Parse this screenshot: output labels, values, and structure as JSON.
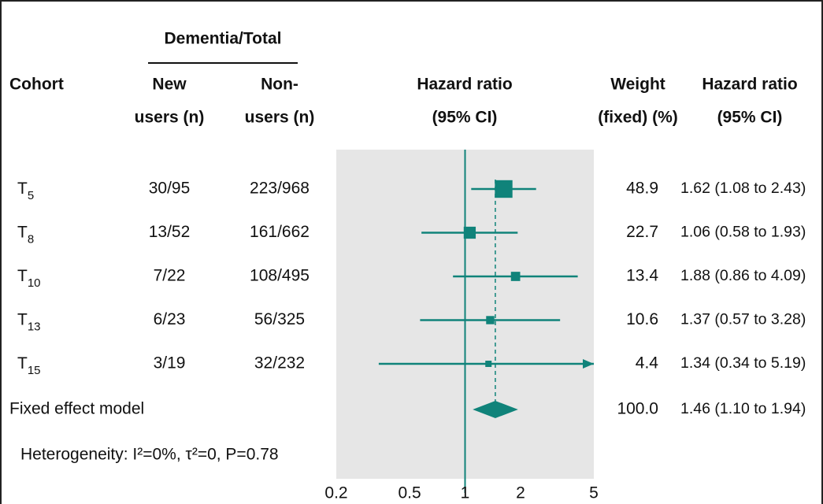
{
  "chart_data": {
    "type": "forest",
    "headers": {
      "group": "Dementia/Total",
      "cohort": "Cohort",
      "new_users": [
        "New",
        "users (n)"
      ],
      "non_users": [
        "Non-",
        "users (n)"
      ],
      "plot": [
        "Hazard ratio",
        "(95% CI)"
      ],
      "weight": [
        "Weight",
        "(fixed) (%)"
      ],
      "ci": [
        "Hazard ratio",
        "(95% CI)"
      ]
    },
    "cohorts": [
      {
        "base": "T",
        "sub": "5"
      },
      {
        "base": "T",
        "sub": "8"
      },
      {
        "base": "T",
        "sub": "10"
      },
      {
        "base": "T",
        "sub": "13"
      },
      {
        "base": "T",
        "sub": "15"
      }
    ],
    "new_users": [
      "30/95",
      "13/52",
      "7/22",
      "6/23",
      "3/19"
    ],
    "non_users": [
      "223/968",
      "161/662",
      "108/495",
      "56/325",
      "32/232"
    ],
    "hr": [
      1.62,
      1.06,
      1.88,
      1.37,
      1.34
    ],
    "lower": [
      1.08,
      0.58,
      0.86,
      0.57,
      0.34
    ],
    "upper": [
      2.43,
      1.93,
      4.09,
      3.28,
      5.19
    ],
    "weights": [
      48.9,
      22.7,
      13.4,
      10.6,
      4.4
    ],
    "value_labels": [
      "1.62 (1.08 to 2.43)",
      "1.06 (0.58 to 1.93)",
      "1.88 (0.86 to 4.09)",
      "1.37 (0.57 to 3.28)",
      "1.34 (0.34 to 5.19)"
    ],
    "pooled": {
      "label": "Fixed effect model",
      "hr": 1.46,
      "lower": 1.1,
      "upper": 1.94,
      "weight": 100,
      "weight_label": "100.0",
      "ci_label": "1.46 (1.10 to 1.94)"
    },
    "heterogeneity": "Heterogeneity: I²=0%, τ²=0, P=0.78",
    "reference": 1,
    "log_x": true,
    "xlim": [
      0.2,
      5
    ],
    "xticks": [
      0.2,
      0.5,
      1,
      2,
      5
    ],
    "color": "#10837a",
    "panel_color": "#e6e6e6"
  }
}
